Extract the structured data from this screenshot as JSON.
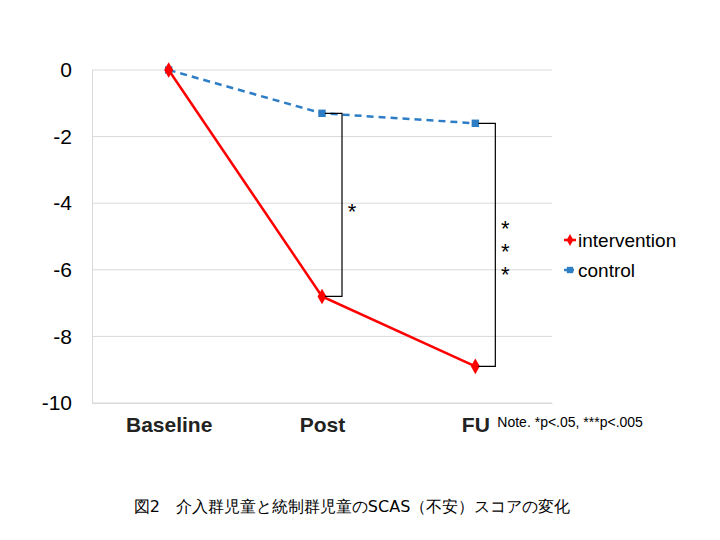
{
  "chart_data": {
    "type": "line",
    "title": "図2　介入群児童と統制群児童のSCAS（不安）スコアの変化",
    "categories": [
      "Baseline",
      "Post",
      "FU"
    ],
    "series": [
      {
        "name": "intervention",
        "color": "#ff0000",
        "marker": "diamond",
        "line_style": "solid",
        "values": [
          0,
          -6.8,
          -8.9
        ]
      },
      {
        "name": "control",
        "color": "#2e7ec6",
        "marker": "square",
        "line_style": "dashed",
        "values": [
          0,
          -1.3,
          -1.6
        ]
      }
    ],
    "significance": [
      null,
      "*",
      "***"
    ],
    "note": "Note. *p<.05, ***p<.005",
    "ylim": [
      -10,
      0
    ],
    "yticks": [
      0,
      -2,
      -4,
      -6,
      -8,
      -10
    ],
    "grid": true,
    "legend": "right"
  }
}
